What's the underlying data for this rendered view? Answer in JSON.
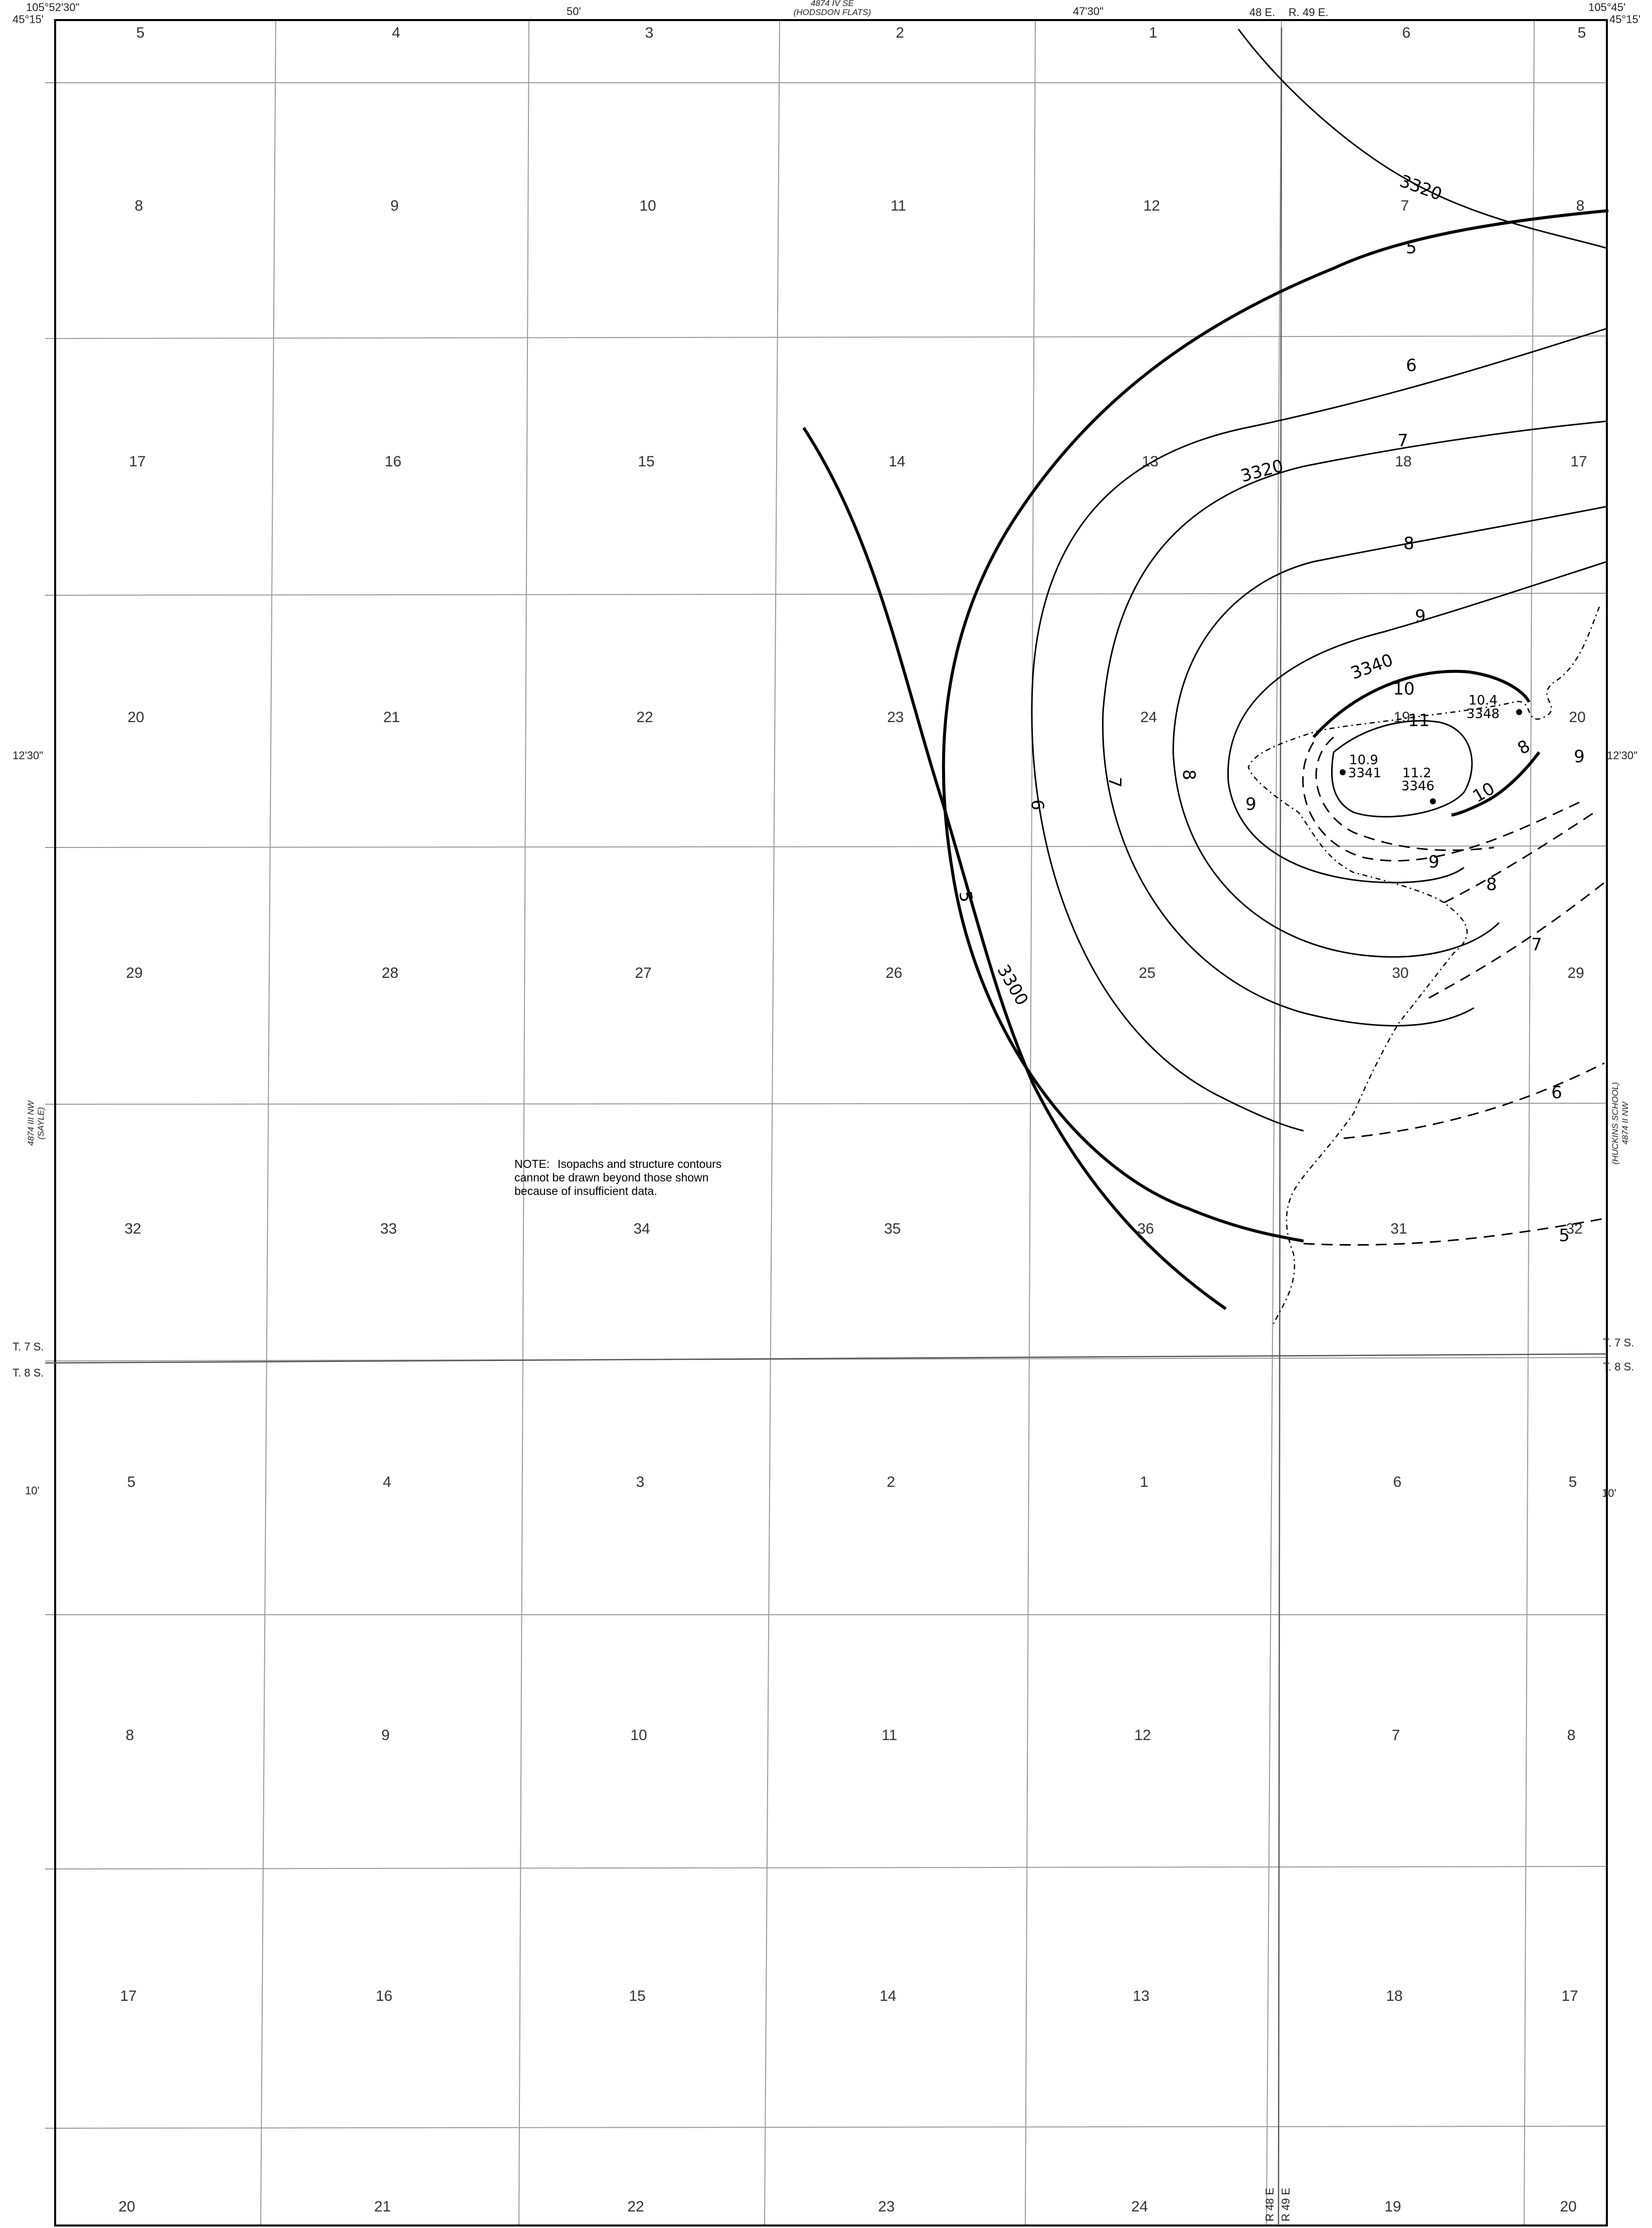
{
  "corners": {
    "top_left_lon": "105°52'30\"",
    "top_left_lat": "45°15'",
    "top_right_lon": "105°45'",
    "top_right_lat": "45°15'"
  },
  "top_ticks": {
    "t50": "50'",
    "t4730": "47'30\""
  },
  "left_ticks": {
    "t1230": "12'30\"",
    "t10": "10'"
  },
  "right_ticks": {
    "t1230": "12'30\"",
    "t10": "10'"
  },
  "adjoining": {
    "top_line1": "4874 IV SE",
    "top_line2": "(HODSDON FLATS)",
    "left_line1": "4874 III NW",
    "left_line2": "(SAYLE)",
    "right_line1": "(HUCKINS SCHOOL)",
    "right_line2": "4874 II NW"
  },
  "ranges": {
    "top_left": "48 E.",
    "top_right": "R. 49 E.",
    "bottom_left": "R 48 E",
    "bottom_right": "R 49 E"
  },
  "townships": {
    "left_upper": "T. 7 S.",
    "left_lower": "T. 8 S.",
    "right_upper": "T. 7 S.",
    "right_lower": "T. 8 S."
  },
  "sections": [
    "5",
    "4",
    "3",
    "2",
    "1",
    "6",
    "5",
    "8",
    "9",
    "10",
    "11",
    "12",
    "7",
    "8",
    "17",
    "16",
    "15",
    "14",
    "13",
    "18",
    "17",
    "20",
    "21",
    "22",
    "23",
    "24",
    "19",
    "20",
    "29",
    "28",
    "27",
    "26",
    "25",
    "30",
    "29",
    "32",
    "33",
    "34",
    "35",
    "36",
    "31",
    "32",
    "5",
    "4",
    "3",
    "2",
    "1",
    "6",
    "5",
    "8",
    "9",
    "10",
    "11",
    "12",
    "7",
    "8",
    "17",
    "16",
    "15",
    "14",
    "13",
    "18",
    "17",
    "20",
    "21",
    "22",
    "23",
    "24",
    "19",
    "20"
  ],
  "contour_labels": {
    "c3320_upper": "3320",
    "c3320_mid": "3320",
    "c3340": "3340",
    "c3300": "3300",
    "iso5": "5",
    "iso6": "6",
    "iso7": "7",
    "iso8": "8",
    "iso9": "9",
    "iso10": "10",
    "iso11": "11",
    "iso9_west": "9",
    "iso8_west": "8",
    "iso7_west": "7",
    "iso6_west": "6",
    "iso5_west": "5",
    "iso10_south": "10",
    "iso9_south": "9",
    "iso8_south": "8",
    "iso7_south": "7",
    "iso6_south": "6",
    "iso8_east": "8",
    "iso9_east": "9",
    "iso5_south": "5"
  },
  "wells": [
    {
      "thickness": "10.4",
      "elevation": "3348"
    },
    {
      "thickness": "10.9",
      "elevation": "3341"
    },
    {
      "thickness": "11.2",
      "elevation": "3346"
    }
  ],
  "note": {
    "lead": "NOTE:",
    "text": "Isopachs and structure contours cannot be drawn beyond those shown because of insufficient data."
  }
}
